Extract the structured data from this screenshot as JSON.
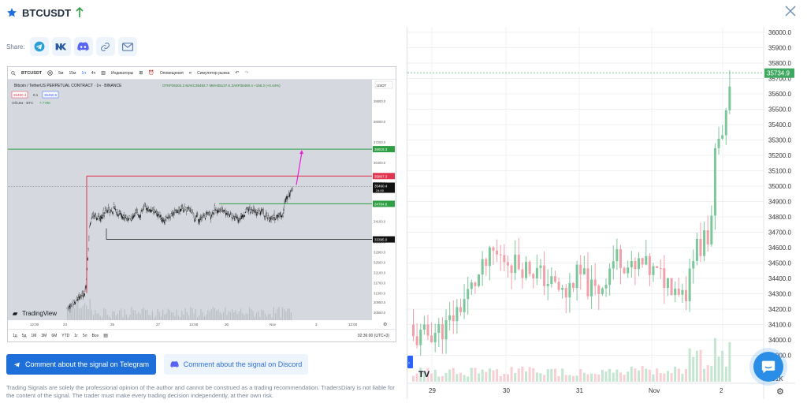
{
  "header": {
    "title": "BTCUSDT",
    "trend": "up"
  },
  "share": {
    "label": "Share:",
    "icons": [
      "telegram-icon",
      "vk-icon",
      "discord-icon",
      "link-icon",
      "mail-icon"
    ]
  },
  "snapshot": {
    "toolbar": {
      "symbol": "BTCUSDT",
      "intervals": [
        "5м",
        "15м",
        "1ч",
        "4ч"
      ],
      "indicators": "Индикаторы",
      "alerts": "Оповещения",
      "replay": "Симулятор рынка"
    },
    "legend": {
      "name": "Bitcoin / TetherUS PERPETUAL CONTRACT · 1ч · BINANCE",
      "ohlc": "ОТКР35304.2  МАКС35482.7  МИН35137.6  ЗАКР35460.4  +156.2 (+0.44%)",
      "bid": "35460.4",
      "spread": "0.1",
      "ask": "35460.5",
      "volume_label": "Объём · BTC",
      "volume_value": "7.778K"
    },
    "currency": "USDT",
    "price_axis": [
      "38800.0",
      "38000.0",
      "37200.0",
      "36400.0",
      "35600.0",
      "34800.0",
      "34100.0",
      "33300.0",
      "32900.0",
      "32500.0",
      "32100.0",
      "31700.0",
      "31300.0",
      "30950.0",
      "30550.0"
    ],
    "price_tags": {
      "target": "36919.3",
      "stop": "35867.3",
      "current": "35460.4",
      "countdown": "24:00",
      "entry": "34784.8",
      "support": "33395.0"
    },
    "time_axis": [
      "12:00",
      "23",
      "25",
      "27",
      "12:00",
      "30",
      "Nov",
      "3",
      "12:00"
    ],
    "ranges": [
      "1д",
      "5д",
      "1М",
      "3М",
      "6М",
      "YTD",
      "1г",
      "5л",
      "Все"
    ],
    "clock": "02:36:00 (UTC+3)",
    "brand": "TradingView",
    "colors": {
      "target": "#2ea043",
      "stop": "#e0344f",
      "entry": "#2ea043",
      "arrow": "#e81fd8"
    }
  },
  "buttons": {
    "telegram": "Comment about the signal on Telegram",
    "discord": "Comment about the signal on Discord"
  },
  "disclaimer": "Trading Signals are solely the professional opinion of the author and cannot be construed as a trading recommendation. TradersDiary is not liable for the content of the signal. The trader must make every trading decision independently, at their own risk.",
  "live_chart": {
    "price_axis": [
      "36000.0",
      "35900.0",
      "35800.0",
      "35700.0",
      "35600.0",
      "35500.0",
      "35400.0",
      "35300.0",
      "35200.0",
      "35100.0",
      "35000.0",
      "34900.0",
      "34800.0",
      "34700.0",
      "34600.0",
      "34500.0",
      "34400.0",
      "34300.0",
      "34200.0",
      "34100.0",
      "34000.0",
      "33900.0"
    ],
    "volume_tag": "101K",
    "current_price": "35734.9",
    "time_axis": [
      "29",
      "30",
      "31",
      "Nov",
      "2"
    ],
    "colors": {
      "up": "#7cc79a",
      "down": "#f0a0a8",
      "current": "#3fa860"
    }
  },
  "chat_icon": "chat-icon"
}
